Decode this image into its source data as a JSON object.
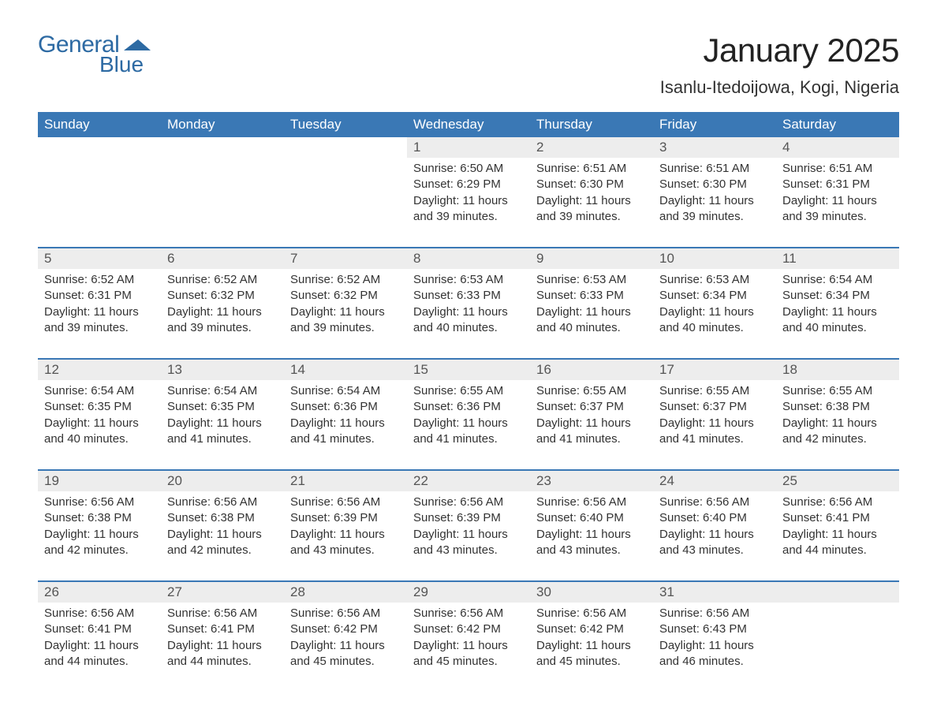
{
  "brand": {
    "general": "General",
    "blue": "Blue"
  },
  "title": "January 2025",
  "location": "Isanlu-Itedoijowa, Kogi, Nigeria",
  "colors": {
    "header_bg": "#3a78b5",
    "header_fg": "#ffffff",
    "daynum_bg": "#ededed",
    "border": "#3a78b5",
    "text": "#333333",
    "logo": "#2d6aa3"
  },
  "weekdays": [
    "Sunday",
    "Monday",
    "Tuesday",
    "Wednesday",
    "Thursday",
    "Friday",
    "Saturday"
  ],
  "weeks": [
    [
      null,
      null,
      null,
      {
        "n": "1",
        "sr": "Sunrise: 6:50 AM",
        "ss": "Sunset: 6:29 PM",
        "dl": "Daylight: 11 hours and 39 minutes."
      },
      {
        "n": "2",
        "sr": "Sunrise: 6:51 AM",
        "ss": "Sunset: 6:30 PM",
        "dl": "Daylight: 11 hours and 39 minutes."
      },
      {
        "n": "3",
        "sr": "Sunrise: 6:51 AM",
        "ss": "Sunset: 6:30 PM",
        "dl": "Daylight: 11 hours and 39 minutes."
      },
      {
        "n": "4",
        "sr": "Sunrise: 6:51 AM",
        "ss": "Sunset: 6:31 PM",
        "dl": "Daylight: 11 hours and 39 minutes."
      }
    ],
    [
      {
        "n": "5",
        "sr": "Sunrise: 6:52 AM",
        "ss": "Sunset: 6:31 PM",
        "dl": "Daylight: 11 hours and 39 minutes."
      },
      {
        "n": "6",
        "sr": "Sunrise: 6:52 AM",
        "ss": "Sunset: 6:32 PM",
        "dl": "Daylight: 11 hours and 39 minutes."
      },
      {
        "n": "7",
        "sr": "Sunrise: 6:52 AM",
        "ss": "Sunset: 6:32 PM",
        "dl": "Daylight: 11 hours and 39 minutes."
      },
      {
        "n": "8",
        "sr": "Sunrise: 6:53 AM",
        "ss": "Sunset: 6:33 PM",
        "dl": "Daylight: 11 hours and 40 minutes."
      },
      {
        "n": "9",
        "sr": "Sunrise: 6:53 AM",
        "ss": "Sunset: 6:33 PM",
        "dl": "Daylight: 11 hours and 40 minutes."
      },
      {
        "n": "10",
        "sr": "Sunrise: 6:53 AM",
        "ss": "Sunset: 6:34 PM",
        "dl": "Daylight: 11 hours and 40 minutes."
      },
      {
        "n": "11",
        "sr": "Sunrise: 6:54 AM",
        "ss": "Sunset: 6:34 PM",
        "dl": "Daylight: 11 hours and 40 minutes."
      }
    ],
    [
      {
        "n": "12",
        "sr": "Sunrise: 6:54 AM",
        "ss": "Sunset: 6:35 PM",
        "dl": "Daylight: 11 hours and 40 minutes."
      },
      {
        "n": "13",
        "sr": "Sunrise: 6:54 AM",
        "ss": "Sunset: 6:35 PM",
        "dl": "Daylight: 11 hours and 41 minutes."
      },
      {
        "n": "14",
        "sr": "Sunrise: 6:54 AM",
        "ss": "Sunset: 6:36 PM",
        "dl": "Daylight: 11 hours and 41 minutes."
      },
      {
        "n": "15",
        "sr": "Sunrise: 6:55 AM",
        "ss": "Sunset: 6:36 PM",
        "dl": "Daylight: 11 hours and 41 minutes."
      },
      {
        "n": "16",
        "sr": "Sunrise: 6:55 AM",
        "ss": "Sunset: 6:37 PM",
        "dl": "Daylight: 11 hours and 41 minutes."
      },
      {
        "n": "17",
        "sr": "Sunrise: 6:55 AM",
        "ss": "Sunset: 6:37 PM",
        "dl": "Daylight: 11 hours and 41 minutes."
      },
      {
        "n": "18",
        "sr": "Sunrise: 6:55 AM",
        "ss": "Sunset: 6:38 PM",
        "dl": "Daylight: 11 hours and 42 minutes."
      }
    ],
    [
      {
        "n": "19",
        "sr": "Sunrise: 6:56 AM",
        "ss": "Sunset: 6:38 PM",
        "dl": "Daylight: 11 hours and 42 minutes."
      },
      {
        "n": "20",
        "sr": "Sunrise: 6:56 AM",
        "ss": "Sunset: 6:38 PM",
        "dl": "Daylight: 11 hours and 42 minutes."
      },
      {
        "n": "21",
        "sr": "Sunrise: 6:56 AM",
        "ss": "Sunset: 6:39 PM",
        "dl": "Daylight: 11 hours and 43 minutes."
      },
      {
        "n": "22",
        "sr": "Sunrise: 6:56 AM",
        "ss": "Sunset: 6:39 PM",
        "dl": "Daylight: 11 hours and 43 minutes."
      },
      {
        "n": "23",
        "sr": "Sunrise: 6:56 AM",
        "ss": "Sunset: 6:40 PM",
        "dl": "Daylight: 11 hours and 43 minutes."
      },
      {
        "n": "24",
        "sr": "Sunrise: 6:56 AM",
        "ss": "Sunset: 6:40 PM",
        "dl": "Daylight: 11 hours and 43 minutes."
      },
      {
        "n": "25",
        "sr": "Sunrise: 6:56 AM",
        "ss": "Sunset: 6:41 PM",
        "dl": "Daylight: 11 hours and 44 minutes."
      }
    ],
    [
      {
        "n": "26",
        "sr": "Sunrise: 6:56 AM",
        "ss": "Sunset: 6:41 PM",
        "dl": "Daylight: 11 hours and 44 minutes."
      },
      {
        "n": "27",
        "sr": "Sunrise: 6:56 AM",
        "ss": "Sunset: 6:41 PM",
        "dl": "Daylight: 11 hours and 44 minutes."
      },
      {
        "n": "28",
        "sr": "Sunrise: 6:56 AM",
        "ss": "Sunset: 6:42 PM",
        "dl": "Daylight: 11 hours and 45 minutes."
      },
      {
        "n": "29",
        "sr": "Sunrise: 6:56 AM",
        "ss": "Sunset: 6:42 PM",
        "dl": "Daylight: 11 hours and 45 minutes."
      },
      {
        "n": "30",
        "sr": "Sunrise: 6:56 AM",
        "ss": "Sunset: 6:42 PM",
        "dl": "Daylight: 11 hours and 45 minutes."
      },
      {
        "n": "31",
        "sr": "Sunrise: 6:56 AM",
        "ss": "Sunset: 6:43 PM",
        "dl": "Daylight: 11 hours and 46 minutes."
      },
      null
    ]
  ]
}
